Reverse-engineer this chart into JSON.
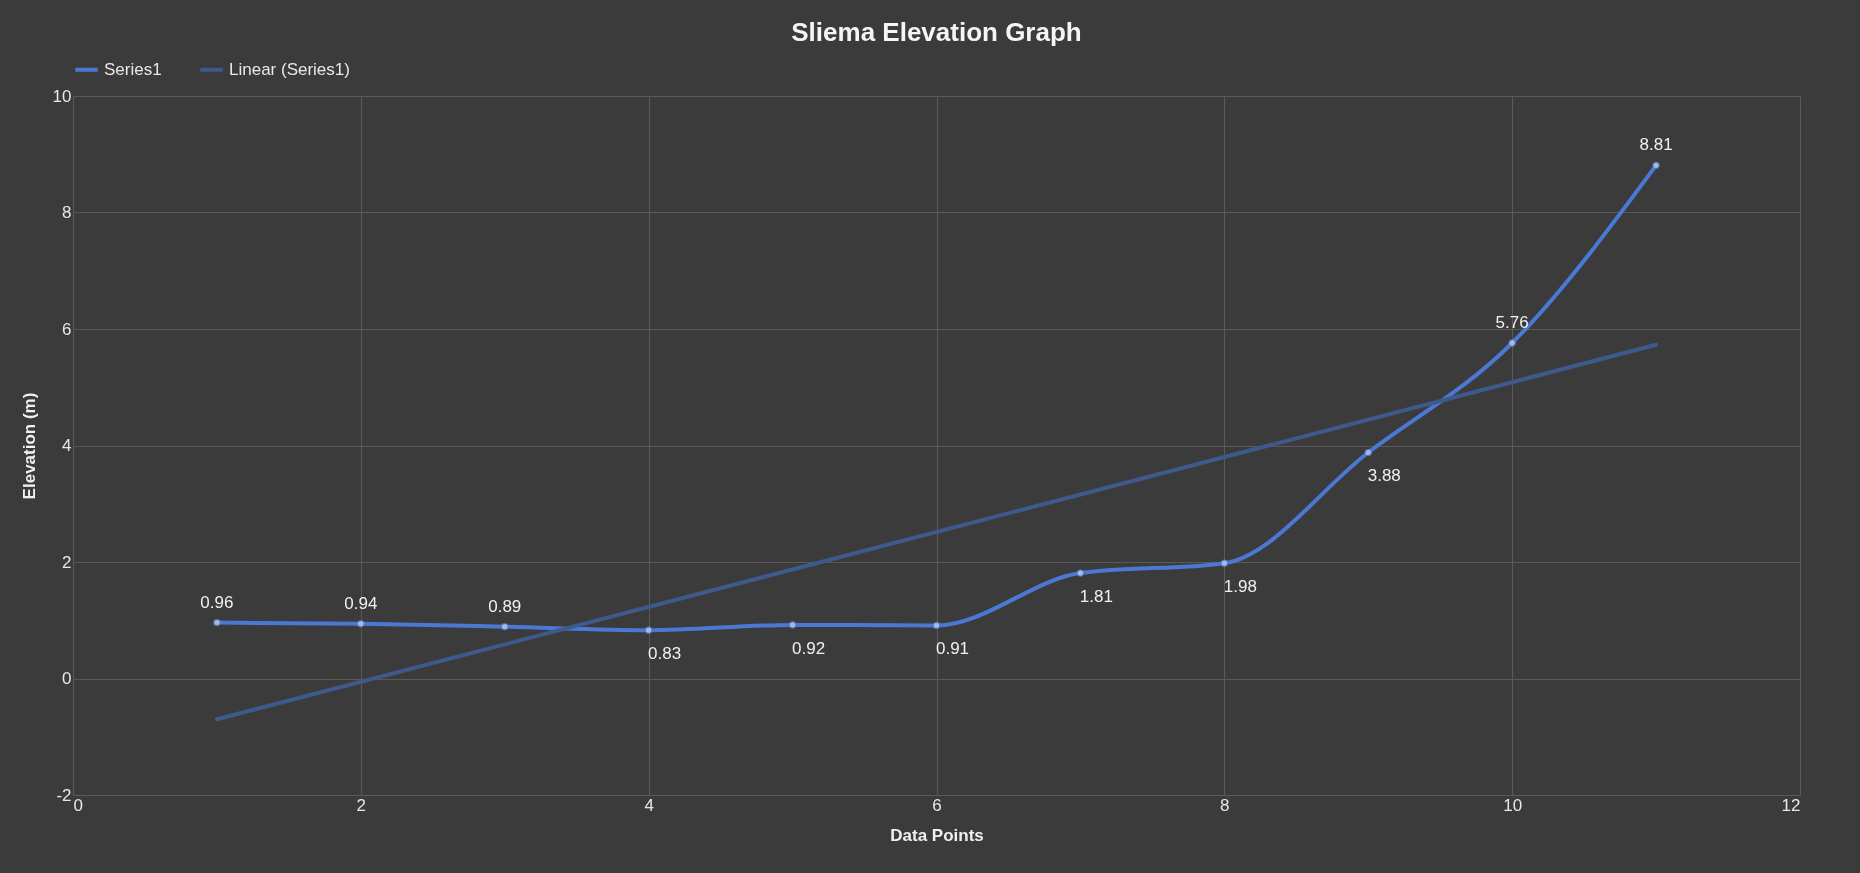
{
  "chart_data": {
    "type": "line",
    "title": "Sliema Elevation Graph",
    "xlabel": "Data Points",
    "ylabel": "Elevation (m)",
    "x": [
      1,
      2,
      3,
      4,
      5,
      6,
      7,
      8,
      9,
      10,
      11
    ],
    "series": [
      {
        "name": "Series1",
        "color": "#4a78d4",
        "marker": "circle",
        "values": [
          0.96,
          0.94,
          0.89,
          0.83,
          0.92,
          0.91,
          1.81,
          1.98,
          3.88,
          5.76,
          8.81
        ],
        "value_labels": [
          "0.96",
          "0.94",
          "0.89",
          "0.83",
          "0.92",
          "0.91",
          "1.81",
          "1.98",
          "3.88",
          "5.76",
          "8.81"
        ]
      },
      {
        "name": "Linear (Series1)",
        "type": "line",
        "color": "#3e5a8c",
        "x": [
          1,
          11
        ],
        "values": [
          -0.7,
          5.73
        ]
      }
    ],
    "xlim": [
      0,
      12
    ],
    "xticks": [
      0,
      2,
      4,
      6,
      8,
      10,
      12
    ],
    "ylim": [
      -2,
      10
    ],
    "yticks": [
      -2,
      0,
      2,
      4,
      6,
      8,
      10
    ],
    "grid": true,
    "legend": "top"
  }
}
